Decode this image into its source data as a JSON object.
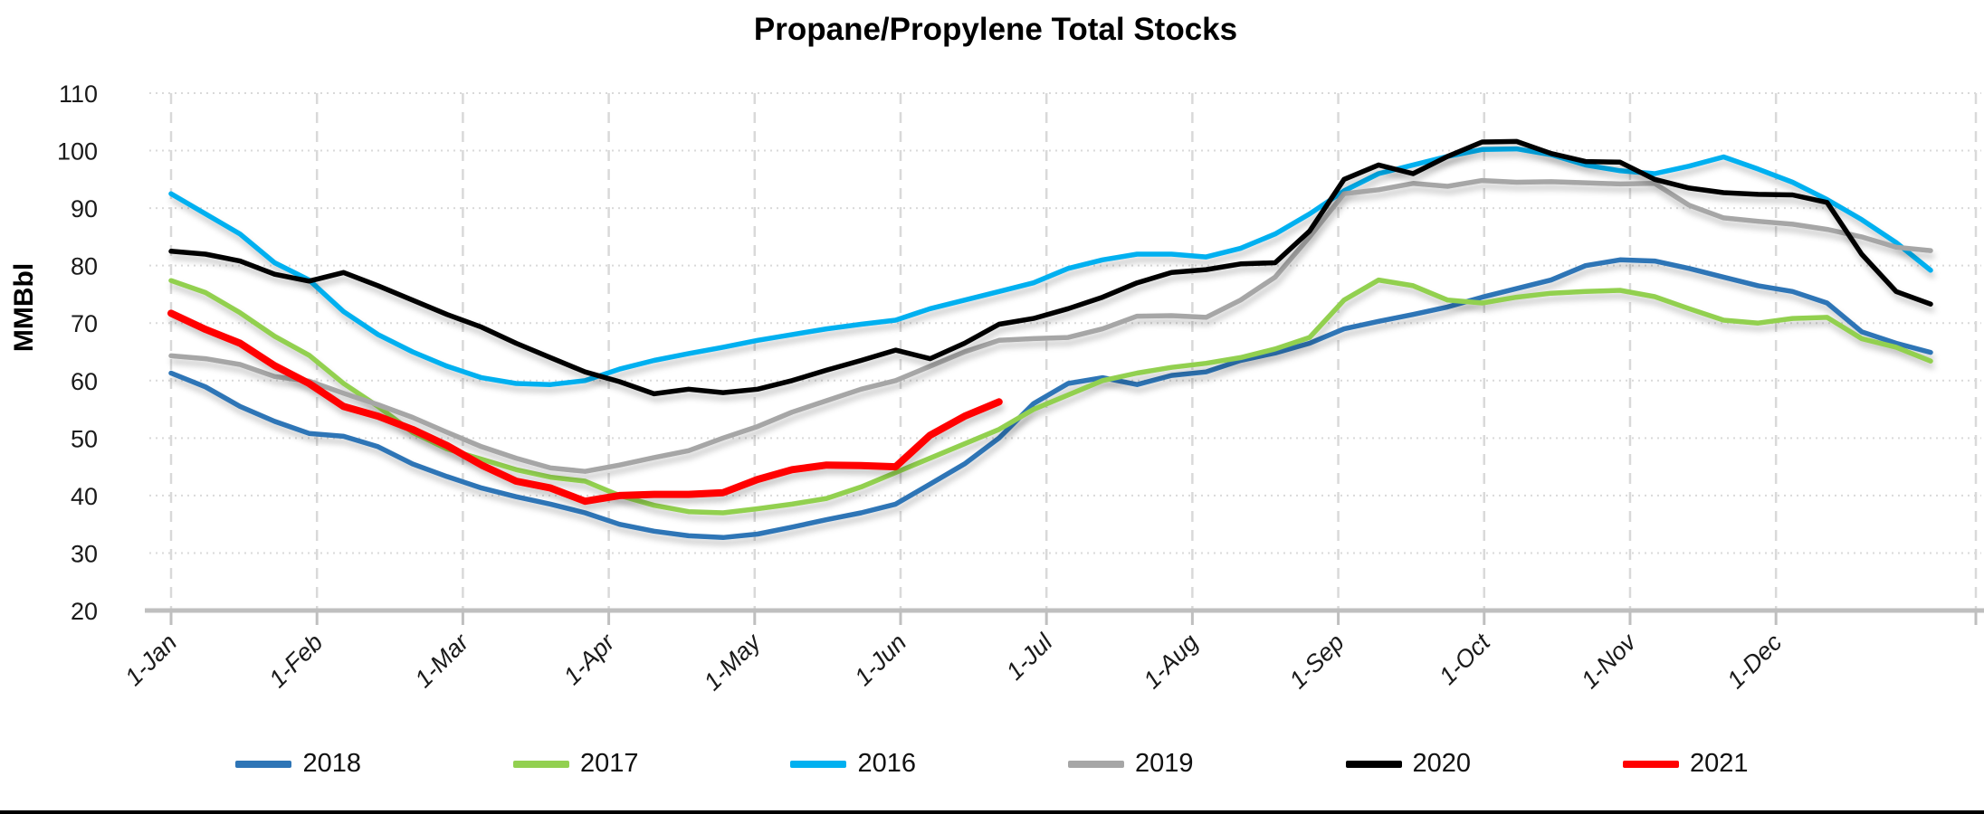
{
  "title": "Propane/Propylene Total Stocks",
  "y_axis": {
    "label": "MMBbl",
    "min": 20,
    "max": 110,
    "tick_step": 10,
    "ticks": [
      110,
      100,
      90,
      80,
      70,
      60,
      50,
      40,
      30,
      20
    ]
  },
  "x_axis": {
    "ticks": [
      "1-Jan",
      "1-Feb",
      "1-Mar",
      "1-Apr",
      "1-May",
      "1-Jun",
      "1-Jul",
      "1-Aug",
      "1-Sep",
      "1-Oct",
      "1-Nov",
      "1-Dec"
    ]
  },
  "legend": {
    "items": [
      "2018",
      "2017",
      "2016",
      "2019",
      "2020",
      "2021"
    ]
  },
  "colors": {
    "2018": "#2E75B6",
    "2017": "#92D050",
    "2016": "#00B0F0",
    "2019": "#A6A6A6",
    "2020": "#000000",
    "2021": "#FF0000",
    "gridline": "#D9D9D9",
    "axis": "#BFBFBF"
  },
  "chart_data": {
    "type": "line",
    "title": "Propane/Propylene Total Stocks",
    "xlabel": "",
    "ylabel": "MMBbl",
    "ylim": [
      20,
      110
    ],
    "grid": true,
    "legend_position": "bottom",
    "frequency": "weekly",
    "x_ticks": [
      "1-Jan",
      "1-Feb",
      "1-Mar",
      "1-Apr",
      "1-May",
      "1-Jun",
      "1-Jul",
      "1-Aug",
      "1-Sep",
      "1-Oct",
      "1-Nov",
      "1-Dec"
    ],
    "points_per_year": 52,
    "series": [
      {
        "name": "2018",
        "color": "#2E75B6",
        "values": [
          61.3,
          58.9,
          55.5,
          52.9,
          50.8,
          50.3,
          48.5,
          45.5,
          43.3,
          41.3,
          39.8,
          38.5,
          37,
          35,
          33.8,
          33,
          32.7,
          33.3,
          34.5,
          35.8,
          37,
          38.5,
          42,
          45.5,
          50,
          56,
          59.5,
          60.5,
          59.3,
          60.9,
          61.5,
          63.5,
          64.8,
          66.5,
          69,
          70.3,
          71.5,
          72.8,
          74.5,
          76,
          77.5,
          80,
          81,
          80.8,
          79.5,
          78,
          76.5,
          75.5,
          73.5,
          68.5,
          66.5,
          64.9
        ]
      },
      {
        "name": "2017",
        "color": "#92D050",
        "values": [
          77.4,
          75.3,
          71.8,
          67.7,
          64.4,
          59.5,
          55.5,
          51,
          48.1,
          46.3,
          44.5,
          43.2,
          42.5,
          40,
          38.3,
          37.2,
          37,
          37.7,
          38.5,
          39.5,
          41.5,
          44,
          46.5,
          49,
          51.5,
          55,
          57.5,
          60,
          61.3,
          62.3,
          63,
          64,
          65.5,
          67.5,
          74,
          77.5,
          76.5,
          74,
          73.5,
          74.5,
          75.2,
          75.5,
          75.7,
          74.6,
          72.5,
          70.5,
          70,
          70.8,
          71,
          67.3,
          65.8,
          63.4
        ]
      },
      {
        "name": "2016",
        "color": "#00B0F0",
        "values": [
          92.5,
          89,
          85.5,
          80.5,
          77.5,
          72,
          68,
          65,
          62.5,
          60.5,
          59.5,
          59.3,
          60,
          62,
          63.5,
          64.7,
          65.8,
          67,
          68,
          69,
          69.8,
          70.5,
          72.5,
          74,
          75.5,
          77,
          79.5,
          81,
          82,
          82,
          81.5,
          83,
          85.5,
          89,
          93,
          96,
          97.5,
          99,
          100.2,
          100.3,
          99.3,
          97.5,
          96.5,
          96,
          97.3,
          98.9,
          96.8,
          94.5,
          91.5,
          88,
          84,
          79.2
        ]
      },
      {
        "name": "2019",
        "color": "#A6A6A6",
        "values": [
          64.3,
          63.8,
          62.8,
          60.7,
          59.9,
          57.8,
          55.8,
          53.6,
          51,
          48.5,
          46.5,
          44.8,
          44.2,
          45.3,
          46.6,
          47.8,
          50,
          52,
          54.5,
          56.5,
          58.5,
          60,
          62.5,
          65,
          67,
          67.3,
          67.5,
          69,
          71.2,
          71.3,
          71,
          74,
          78,
          85,
          92.5,
          93.2,
          94.3,
          93.8,
          94.8,
          94.5,
          94.6,
          94.4,
          94.2,
          94.3,
          90.5,
          88.3,
          87.7,
          87.2,
          86.3,
          85,
          83.2,
          82.6
        ]
      },
      {
        "name": "2020",
        "color": "#000000",
        "values": [
          82.5,
          82,
          80.8,
          78.5,
          77.3,
          78.8,
          76.5,
          74,
          71.5,
          69.3,
          66.5,
          64,
          61.5,
          59.8,
          57.7,
          58.5,
          57.9,
          58.5,
          60,
          61.8,
          63.5,
          65.3,
          63.8,
          66.5,
          69.8,
          70.8,
          72.5,
          74.5,
          77,
          78.8,
          79.3,
          80.3,
          80.5,
          86,
          95,
          97.5,
          96,
          99,
          101.5,
          101.6,
          99.5,
          98.1,
          98,
          95,
          93.5,
          92.7,
          92.4,
          92.3,
          91,
          82,
          75.5,
          73.3
        ]
      },
      {
        "name": "2021",
        "color": "#FF0000",
        "values": [
          71.7,
          68.9,
          66.5,
          62.6,
          59.5,
          55.5,
          53.8,
          51.5,
          48.7,
          45.3,
          42.5,
          41.3,
          39,
          40,
          40.2,
          40.2,
          40.5,
          42.8,
          44.5,
          45.3,
          45.2,
          45,
          50.5,
          53.8,
          56.3
        ]
      }
    ]
  }
}
